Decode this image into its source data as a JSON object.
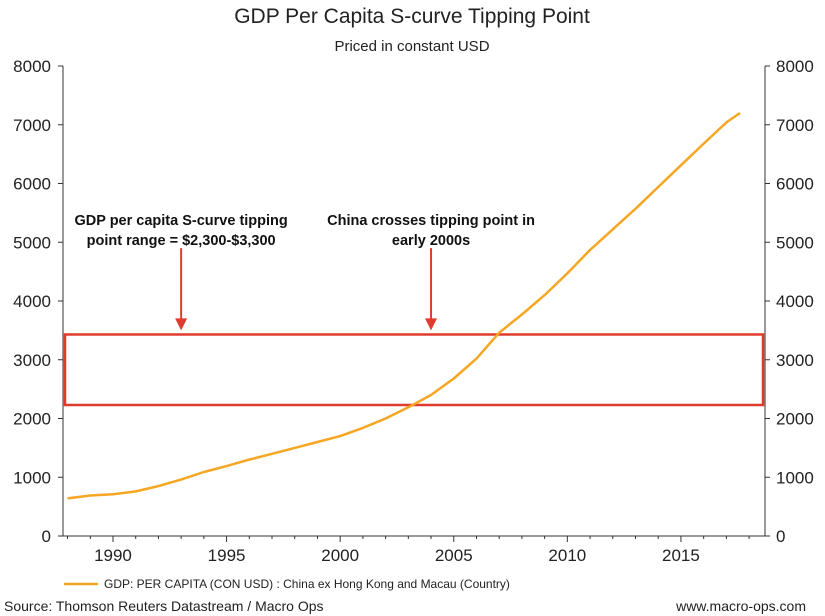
{
  "chart_data": {
    "type": "line",
    "title": "GDP Per Capita S-curve Tipping Point",
    "subtitle": "Priced in constant USD",
    "xlabel": "",
    "ylabel": "",
    "xlim": [
      1987.8,
      2018.7
    ],
    "ylim": [
      0,
      8000
    ],
    "x_ticks": [
      1990,
      1995,
      2000,
      2005,
      2010,
      2015
    ],
    "y_ticks": [
      0,
      1000,
      2000,
      3000,
      4000,
      5000,
      6000,
      7000,
      8000
    ],
    "x_tick_labels": [
      "1990",
      "1995",
      "2000",
      "2005",
      "2010",
      "2015"
    ],
    "y_tick_labels": [
      "0",
      "1000",
      "2000",
      "3000",
      "4000",
      "5000",
      "6000",
      "7000",
      "8000"
    ],
    "series": [
      {
        "name": "GDP: PER CAPITA (CON USD) : China ex Hong Kong and Macau (Country)",
        "color": "#f5a623",
        "x": [
          1988,
          1989,
          1990,
          1991,
          1992,
          1993,
          1994,
          1995,
          1996,
          1997,
          1998,
          1999,
          2000,
          2001,
          2002,
          2003,
          2004,
          2005,
          2006,
          2007,
          2008,
          2009,
          2010,
          2011,
          2012,
          2013,
          2014,
          2015,
          2016,
          2017,
          2017.6
        ],
        "values": [
          640,
          690,
          710,
          760,
          850,
          960,
          1090,
          1190,
          1300,
          1400,
          1500,
          1600,
          1700,
          1840,
          2000,
          2190,
          2400,
          2680,
          3020,
          3460,
          3770,
          4100,
          4470,
          4870,
          5220,
          5570,
          5940,
          6310,
          6680,
          7040,
          7200
        ]
      }
    ],
    "band": {
      "y_min": 2230,
      "y_max": 3430,
      "color": "#e03c2d"
    },
    "annotations": [
      {
        "text_lines": [
          "GDP per capita S-curve tipping",
          "point range = $2,300-$3,300"
        ],
        "arrow_x": 1993,
        "arrow_y_from": 4900,
        "arrow_y_to": 3500
      },
      {
        "text_lines": [
          "China crosses tipping point in",
          "early 2000s"
        ],
        "arrow_x": 2004,
        "arrow_y_from": 4900,
        "arrow_y_to": 3500
      }
    ],
    "legend_position": "bottom-left"
  },
  "footer": {
    "source": "Source: Thomson Reuters Datastream / Macro Ops",
    "website": "www.macro-ops.com"
  }
}
